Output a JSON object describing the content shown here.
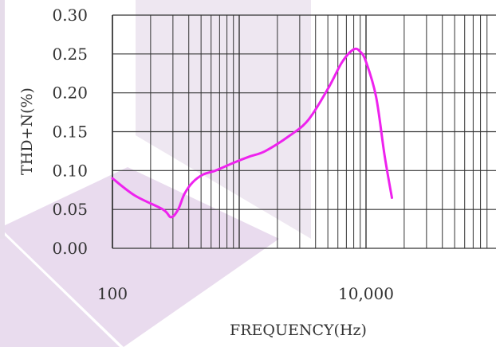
{
  "chart_data": {
    "type": "line",
    "title": "",
    "xlabel": "FREQUENCY(Hz)",
    "ylabel": "THD+N(%)",
    "x_scale": "log",
    "xlim": [
      100,
      100000
    ],
    "ylim": [
      0,
      0.3
    ],
    "grid": true,
    "y_ticks": [
      "0.00",
      "0.05",
      "0.10",
      "0.15",
      "0.20",
      "0.25",
      "0.30"
    ],
    "x_tick_labels": [
      {
        "value": 100,
        "label": "100"
      },
      {
        "value": 10000,
        "label": "10,000"
      }
    ],
    "series": [
      {
        "color": "#ee22ee",
        "x": [
          100,
          150,
          250,
          290,
          330,
          370,
          430,
          520,
          650,
          900,
          1200,
          1600,
          2500,
          3500,
          5000,
          6500,
          8000,
          9000,
          10000,
          12000,
          14000,
          16000
        ],
        "y": [
          0.09,
          0.068,
          0.05,
          0.04,
          0.05,
          0.07,
          0.085,
          0.095,
          0.1,
          0.11,
          0.118,
          0.125,
          0.145,
          0.165,
          0.205,
          0.24,
          0.256,
          0.253,
          0.24,
          0.195,
          0.12,
          0.065
        ]
      }
    ]
  }
}
